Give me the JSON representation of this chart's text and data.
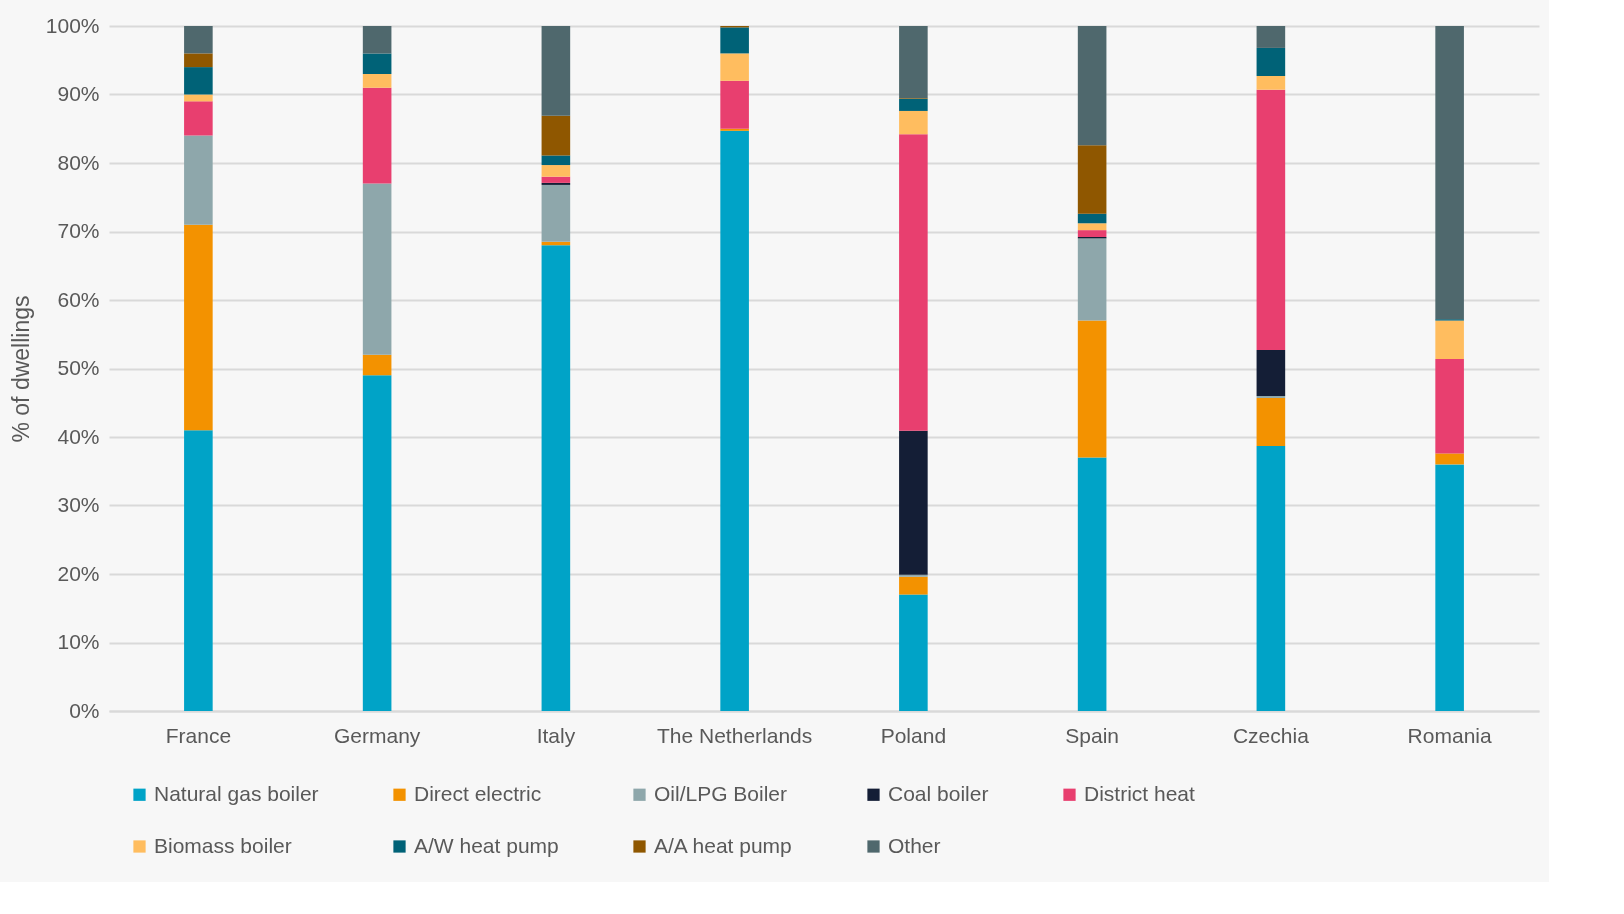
{
  "chart_data": {
    "type": "bar",
    "stacked": true,
    "ylabel": "% of dwellings",
    "categories": [
      "France",
      "Germany",
      "Italy",
      "The Netherlands",
      "Poland",
      "Spain",
      "Czechia",
      "Romania"
    ],
    "series": [
      {
        "name": "Natural gas boiler",
        "color": "#00a3c7",
        "values": [
          41,
          49,
          68,
          84.7,
          17,
          37,
          38.7,
          36
        ]
      },
      {
        "name": "Direct electric",
        "color": "#f39200",
        "values": [
          30,
          3,
          0.5,
          0.3,
          2.6,
          20,
          7,
          1.6
        ]
      },
      {
        "name": "Oil/LPG Boiler",
        "color": "#8ea7ab",
        "values": [
          13,
          25,
          8.3,
          0,
          0.3,
          12,
          0.3,
          0
        ]
      },
      {
        "name": "Coal boiler",
        "color": "#141e36",
        "values": [
          0,
          0,
          0.3,
          0,
          21,
          0.2,
          6.7,
          0
        ]
      },
      {
        "name": "District heat",
        "color": "#e83f6f",
        "values": [
          5,
          14,
          0.9,
          7,
          43.3,
          1,
          38,
          13.8
        ]
      },
      {
        "name": "Biomass boiler",
        "color": "#ffbd5f",
        "values": [
          1,
          2,
          1.7,
          4,
          3.4,
          1,
          2,
          5.6
        ]
      },
      {
        "name": "A/W heat pump",
        "color": "#006277",
        "values": [
          4,
          3,
          1.4,
          3.8,
          1.8,
          1.4,
          4.1,
          0.2
        ]
      },
      {
        "name": "A/A heat pump",
        "color": "#8f5700",
        "values": [
          2,
          0,
          5.8,
          0.2,
          0.1,
          10,
          0,
          0
        ]
      },
      {
        "name": "Other",
        "color": "#4f686d",
        "values": [
          4,
          4,
          13.1,
          0,
          10.5,
          17.4,
          3.2,
          42.8
        ]
      }
    ],
    "ylim": [
      0,
      100
    ],
    "yticks": [
      {
        "value": 0,
        "label": "0%"
      },
      {
        "value": 10,
        "label": "10%"
      },
      {
        "value": 20,
        "label": "20%"
      },
      {
        "value": 30,
        "label": "30%"
      },
      {
        "value": 40,
        "label": "40%"
      },
      {
        "value": 50,
        "label": "50%"
      },
      {
        "value": 60,
        "label": "60%"
      },
      {
        "value": 70,
        "label": "70%"
      },
      {
        "value": 80,
        "label": "80%"
      },
      {
        "value": 90,
        "label": "90%"
      },
      {
        "value": 100,
        "label": "100%"
      }
    ],
    "grid": "y",
    "legend": "bottom"
  }
}
